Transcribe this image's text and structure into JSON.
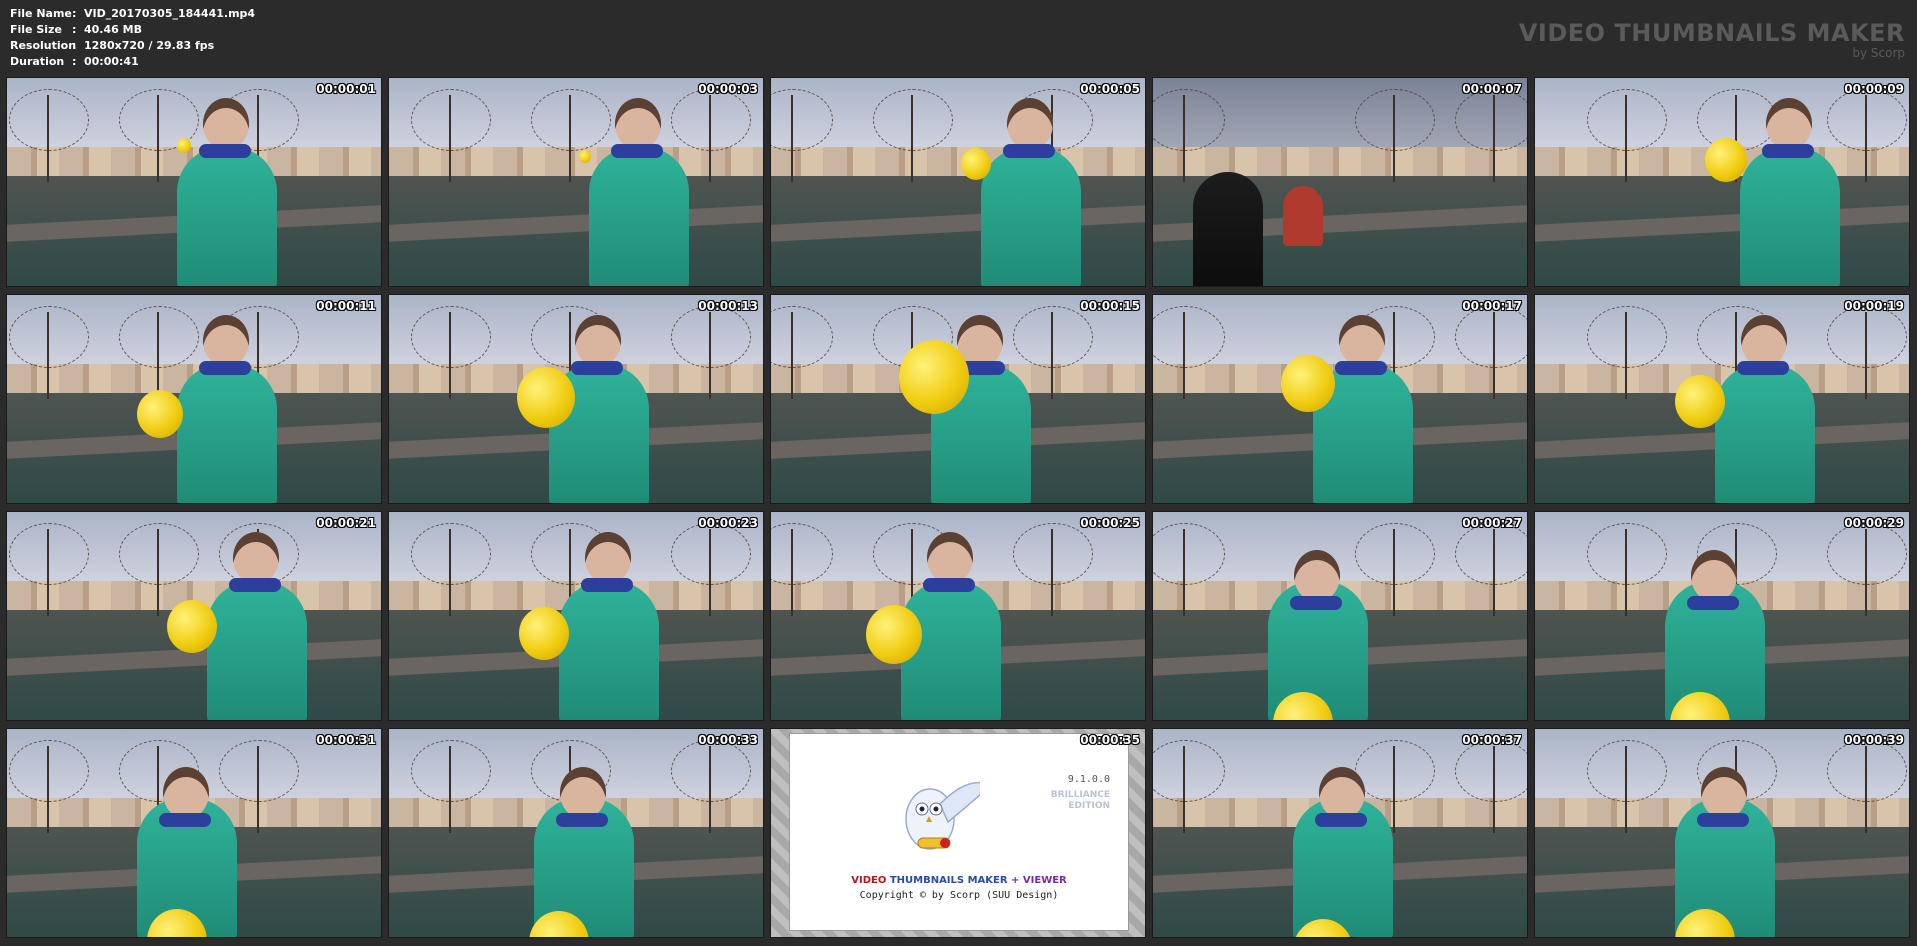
{
  "file_info": {
    "items": [
      {
        "label": "File Name",
        "value": "VID_20170305_184441.mp4"
      },
      {
        "label": "File Size",
        "value": "40.46 MB"
      },
      {
        "label": "Resolution",
        "value": "1280x720 / 29.83 fps"
      },
      {
        "label": "Duration",
        "value": "00:00:41"
      }
    ],
    "separator": ":"
  },
  "brand": {
    "title": "VIDEO THUMBNAILS MAKER",
    "subtitle": "by Scorp"
  },
  "thumbnails": [
    {
      "time": "00:00:01"
    },
    {
      "time": "00:00:03"
    },
    {
      "time": "00:00:05"
    },
    {
      "time": "00:00:07"
    },
    {
      "time": "00:00:09"
    },
    {
      "time": "00:00:11"
    },
    {
      "time": "00:00:13"
    },
    {
      "time": "00:00:15"
    },
    {
      "time": "00:00:17"
    },
    {
      "time": "00:00:19"
    },
    {
      "time": "00:00:21"
    },
    {
      "time": "00:00:23"
    },
    {
      "time": "00:00:25"
    },
    {
      "time": "00:00:27"
    },
    {
      "time": "00:00:29"
    },
    {
      "time": "00:00:31"
    },
    {
      "time": "00:00:33"
    },
    {
      "time": "00:00:35"
    },
    {
      "time": "00:00:37"
    },
    {
      "time": "00:00:39"
    }
  ],
  "splash": {
    "version": "9.1.0.0",
    "edition": "BRILLIANCE\nEDITION",
    "title_part1": "VIDEO ",
    "title_part2": "THUMBNAILS MAKER",
    "title_part3": " + VIEWER",
    "copyright": "Copyright © by Scorp (SUU Design)"
  },
  "colors": {
    "background": "#2b2b2b",
    "jacket": "#2fb39a",
    "balloon": "#f0cc10",
    "scarf": "#2c3f9c"
  }
}
